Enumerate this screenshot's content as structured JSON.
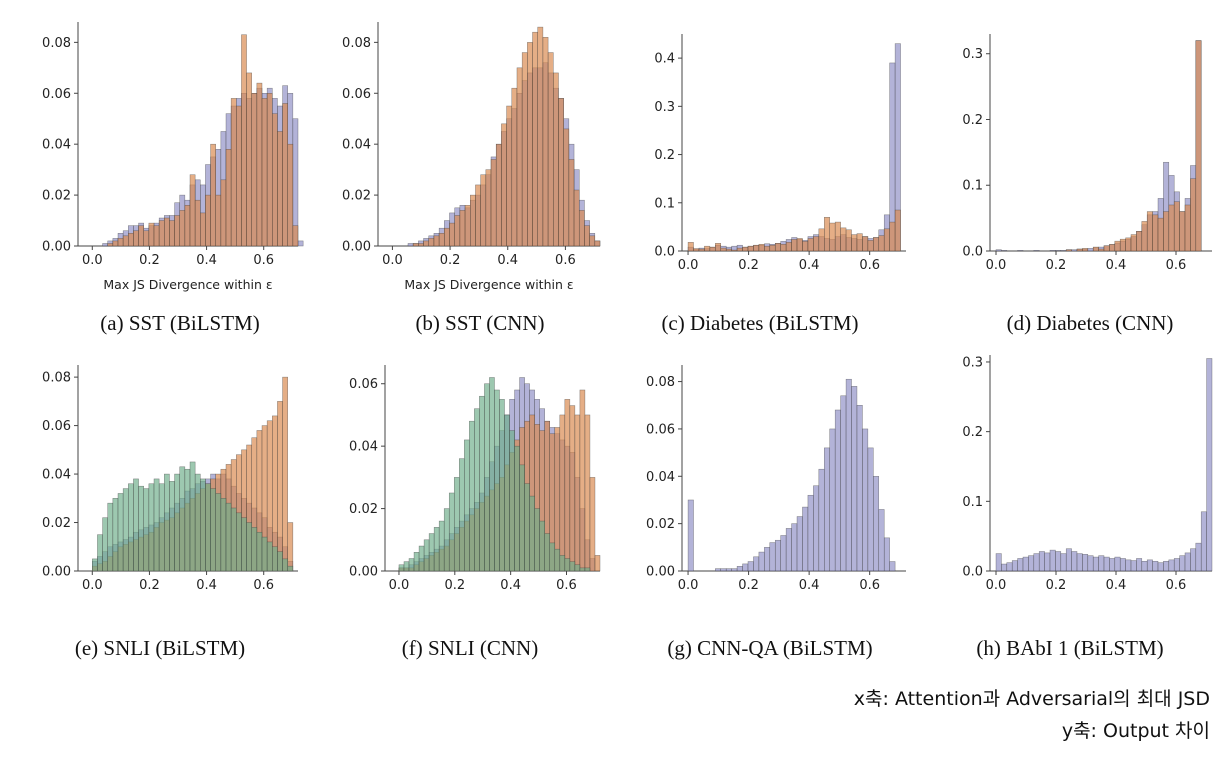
{
  "notes": {
    "x_axis": "x축: Attention과 Adversarial의 최대 JSD",
    "y_axis": "y축: Output 차이"
  },
  "colors": {
    "blue": "#8f8fc6",
    "orange": "#d9874c",
    "green": "#6fae8a"
  },
  "chart_data": [
    {
      "type": "bar",
      "caption": "(a) SST (BiLSTM)",
      "xlabel": "Max JS Divergence within ε",
      "xlim": [
        -0.05,
        0.72
      ],
      "ylim": [
        0,
        0.088
      ],
      "xticks": [
        "0.0",
        "0.2",
        "0.4",
        "0.6"
      ],
      "yticks": [
        "0.00",
        "0.02",
        "0.04",
        "0.06",
        "0.08"
      ],
      "bin_start": 0.0,
      "bin_width": 0.018,
      "series": [
        {
          "color": "blue",
          "values": [
            0.0,
            0.0,
            0.001,
            0.002,
            0.003,
            0.005,
            0.006,
            0.008,
            0.008,
            0.009,
            0.007,
            0.008,
            0.009,
            0.011,
            0.012,
            0.012,
            0.017,
            0.02,
            0.018,
            0.024,
            0.026,
            0.024,
            0.032,
            0.035,
            0.038,
            0.045,
            0.052,
            0.055,
            0.058,
            0.06,
            0.058,
            0.06,
            0.062,
            0.06,
            0.062,
            0.058,
            0.055,
            0.063,
            0.06,
            0.05,
            0.002
          ]
        },
        {
          "color": "orange",
          "values": [
            0.0,
            0.0,
            0.0,
            0.001,
            0.002,
            0.003,
            0.004,
            0.005,
            0.006,
            0.008,
            0.006,
            0.009,
            0.008,
            0.01,
            0.011,
            0.01,
            0.012,
            0.014,
            0.016,
            0.028,
            0.018,
            0.013,
            0.02,
            0.04,
            0.02,
            0.026,
            0.038,
            0.058,
            0.055,
            0.083,
            0.068,
            0.06,
            0.064,
            0.058,
            0.06,
            0.052,
            0.045,
            0.056,
            0.04,
            0.008,
            0.0
          ]
        }
      ]
    },
    {
      "type": "bar",
      "caption": "(b) SST (CNN)",
      "xlabel": "Max JS Divergence within ε",
      "xlim": [
        -0.05,
        0.72
      ],
      "ylim": [
        0,
        0.088
      ],
      "xticks": [
        "0.0",
        "0.2",
        "0.4",
        "0.6"
      ],
      "yticks": [
        "0.00",
        "0.02",
        "0.04",
        "0.06",
        "0.08"
      ],
      "bin_start": 0.0,
      "bin_width": 0.018,
      "series": [
        {
          "color": "blue",
          "values": [
            0.0,
            0.0,
            0.0,
            0.001,
            0.001,
            0.002,
            0.003,
            0.004,
            0.005,
            0.007,
            0.01,
            0.013,
            0.015,
            0.016,
            0.015,
            0.018,
            0.02,
            0.024,
            0.028,
            0.035,
            0.04,
            0.045,
            0.05,
            0.054,
            0.06,
            0.065,
            0.068,
            0.07,
            0.07,
            0.072,
            0.068,
            0.062,
            0.058,
            0.05,
            0.04,
            0.03,
            0.018,
            0.01,
            0.005,
            0.002,
            0.0
          ]
        },
        {
          "color": "orange",
          "values": [
            0.0,
            0.0,
            0.0,
            0.0,
            0.001,
            0.001,
            0.002,
            0.003,
            0.004,
            0.005,
            0.007,
            0.009,
            0.012,
            0.014,
            0.016,
            0.02,
            0.024,
            0.028,
            0.03,
            0.034,
            0.04,
            0.048,
            0.055,
            0.062,
            0.07,
            0.076,
            0.08,
            0.084,
            0.086,
            0.082,
            0.076,
            0.068,
            0.058,
            0.046,
            0.034,
            0.022,
            0.014,
            0.008,
            0.004,
            0.002,
            0.0
          ]
        }
      ]
    },
    {
      "type": "bar",
      "caption": "(c) Diabetes (BiLSTM)",
      "xlabel": "",
      "xlim": [
        -0.02,
        0.72
      ],
      "ylim": [
        0,
        0.45
      ],
      "xticks": [
        "0.0",
        "0.2",
        "0.4",
        "0.6"
      ],
      "yticks": [
        "0.0",
        "0.1",
        "0.2",
        "0.3",
        "0.4"
      ],
      "bin_start": 0.0,
      "bin_width": 0.018,
      "series": [
        {
          "color": "blue",
          "values": [
            0.008,
            0.004,
            0.006,
            0.005,
            0.008,
            0.012,
            0.01,
            0.008,
            0.01,
            0.012,
            0.008,
            0.01,
            0.012,
            0.012,
            0.015,
            0.014,
            0.016,
            0.02,
            0.024,
            0.028,
            0.024,
            0.022,
            0.03,
            0.034,
            0.03,
            0.026,
            0.024,
            0.03,
            0.034,
            0.028,
            0.026,
            0.024,
            0.03,
            0.026,
            0.028,
            0.044,
            0.075,
            0.39,
            0.43
          ]
        },
        {
          "color": "orange",
          "values": [
            0.018,
            0.005,
            0.004,
            0.01,
            0.008,
            0.016,
            0.006,
            0.004,
            0.002,
            0.006,
            0.008,
            0.01,
            0.012,
            0.014,
            0.01,
            0.012,
            0.016,
            0.014,
            0.018,
            0.024,
            0.026,
            0.02,
            0.026,
            0.03,
            0.046,
            0.07,
            0.058,
            0.06,
            0.048,
            0.044,
            0.034,
            0.036,
            0.03,
            0.022,
            0.028,
            0.032,
            0.046,
            0.06,
            0.085
          ]
        }
      ]
    },
    {
      "type": "bar",
      "caption": "(d) Diabetes (CNN)",
      "xlabel": "",
      "xlim": [
        -0.02,
        0.72
      ],
      "ylim": [
        0,
        0.33
      ],
      "xticks": [
        "0.0",
        "0.2",
        "0.4",
        "0.6"
      ],
      "yticks": [
        "0.0",
        "0.1",
        "0.2",
        "0.3"
      ],
      "bin_start": 0.0,
      "bin_width": 0.018,
      "series": [
        {
          "color": "blue",
          "values": [
            0.002,
            0.001,
            0.0,
            0.0,
            0.001,
            0.0,
            0.0,
            0.001,
            0.0,
            0.0,
            0.001,
            0.001,
            0.001,
            0.002,
            0.002,
            0.003,
            0.003,
            0.004,
            0.005,
            0.006,
            0.008,
            0.01,
            0.012,
            0.015,
            0.018,
            0.022,
            0.03,
            0.04,
            0.055,
            0.06,
            0.08,
            0.135,
            0.115,
            0.09,
            0.06,
            0.08,
            0.13,
            0.32,
            0.0
          ]
        },
        {
          "color": "orange",
          "values": [
            0.0,
            0.0,
            0.0,
            0.0,
            0.0,
            0.0,
            0.0,
            0.0,
            0.0,
            0.0,
            0.0,
            0.0,
            0.0,
            0.002,
            0.0,
            0.003,
            0.004,
            0.0,
            0.006,
            0.003,
            0.008,
            0.01,
            0.015,
            0.018,
            0.02,
            0.025,
            0.03,
            0.045,
            0.06,
            0.055,
            0.05,
            0.06,
            0.07,
            0.075,
            0.06,
            0.07,
            0.11,
            0.32,
            0.0
          ]
        }
      ]
    },
    {
      "type": "bar",
      "caption": "(e) SNLI (BiLSTM)",
      "xlabel": "",
      "xlim": [
        -0.05,
        0.72
      ],
      "ylim": [
        0,
        0.085
      ],
      "xticks": [
        "0.0",
        "0.2",
        "0.4",
        "0.6"
      ],
      "yticks": [
        "0.00",
        "0.02",
        "0.04",
        "0.06",
        "0.08"
      ],
      "bin_start": 0.0,
      "bin_width": 0.018,
      "series": [
        {
          "color": "blue",
          "values": [
            0.004,
            0.006,
            0.008,
            0.01,
            0.011,
            0.012,
            0.013,
            0.014,
            0.016,
            0.017,
            0.018,
            0.019,
            0.02,
            0.022,
            0.024,
            0.026,
            0.028,
            0.03,
            0.033,
            0.034,
            0.036,
            0.037,
            0.038,
            0.04,
            0.038,
            0.04,
            0.038,
            0.035,
            0.032,
            0.03,
            0.028,
            0.026,
            0.024,
            0.022,
            0.018,
            0.016,
            0.014,
            0.01,
            0.004,
            0.0
          ]
        },
        {
          "color": "orange",
          "values": [
            0.002,
            0.003,
            0.004,
            0.006,
            0.008,
            0.01,
            0.011,
            0.012,
            0.013,
            0.014,
            0.015,
            0.016,
            0.018,
            0.02,
            0.021,
            0.022,
            0.024,
            0.026,
            0.028,
            0.03,
            0.032,
            0.034,
            0.036,
            0.038,
            0.04,
            0.042,
            0.044,
            0.046,
            0.048,
            0.05,
            0.052,
            0.055,
            0.058,
            0.06,
            0.062,
            0.064,
            0.07,
            0.08,
            0.02,
            0.0
          ]
        },
        {
          "color": "green",
          "values": [
            0.005,
            0.015,
            0.022,
            0.028,
            0.03,
            0.032,
            0.034,
            0.036,
            0.038,
            0.035,
            0.034,
            0.036,
            0.038,
            0.036,
            0.04,
            0.037,
            0.04,
            0.043,
            0.042,
            0.045,
            0.04,
            0.038,
            0.036,
            0.034,
            0.032,
            0.03,
            0.028,
            0.026,
            0.024,
            0.022,
            0.02,
            0.018,
            0.016,
            0.014,
            0.012,
            0.01,
            0.008,
            0.005,
            0.002,
            0.0
          ]
        }
      ]
    },
    {
      "type": "bar",
      "caption": "(f) SNLI (CNN)",
      "xlabel": "",
      "xlim": [
        -0.05,
        0.72
      ],
      "ylim": [
        0,
        0.066
      ],
      "xticks": [
        "0.0",
        "0.2",
        "0.4",
        "0.6"
      ],
      "yticks": [
        "0.00",
        "0.02",
        "0.04",
        "0.06"
      ],
      "bin_start": 0.0,
      "bin_width": 0.018,
      "series": [
        {
          "color": "blue",
          "values": [
            0.001,
            0.001,
            0.002,
            0.003,
            0.004,
            0.005,
            0.006,
            0.007,
            0.008,
            0.01,
            0.012,
            0.014,
            0.016,
            0.018,
            0.02,
            0.022,
            0.025,
            0.03,
            0.035,
            0.04,
            0.045,
            0.05,
            0.055,
            0.058,
            0.062,
            0.06,
            0.058,
            0.055,
            0.052,
            0.048,
            0.046,
            0.044,
            0.042,
            0.04,
            0.038,
            0.03,
            0.02,
            0.01,
            0.004,
            0.0
          ]
        },
        {
          "color": "orange",
          "values": [
            0.001,
            0.001,
            0.001,
            0.002,
            0.003,
            0.004,
            0.005,
            0.006,
            0.007,
            0.008,
            0.01,
            0.012,
            0.014,
            0.016,
            0.018,
            0.02,
            0.022,
            0.024,
            0.026,
            0.028,
            0.03,
            0.034,
            0.038,
            0.042,
            0.046,
            0.048,
            0.05,
            0.047,
            0.045,
            0.048,
            0.044,
            0.046,
            0.05,
            0.055,
            0.053,
            0.05,
            0.058,
            0.05,
            0.03,
            0.005
          ]
        },
        {
          "color": "green",
          "values": [
            0.002,
            0.003,
            0.004,
            0.006,
            0.008,
            0.01,
            0.012,
            0.014,
            0.016,
            0.02,
            0.025,
            0.03,
            0.036,
            0.042,
            0.048,
            0.052,
            0.056,
            0.06,
            0.062,
            0.058,
            0.055,
            0.05,
            0.045,
            0.04,
            0.034,
            0.028,
            0.024,
            0.02,
            0.016,
            0.012,
            0.009,
            0.007,
            0.005,
            0.004,
            0.003,
            0.002,
            0.001,
            0.001,
            0.0,
            0.0
          ]
        }
      ]
    },
    {
      "type": "bar",
      "caption": "(g) CNN-QA (BiLSTM)",
      "xlabel": "",
      "xlim": [
        -0.02,
        0.72
      ],
      "ylim": [
        0,
        0.087
      ],
      "xticks": [
        "0.0",
        "0.2",
        "0.4",
        "0.6"
      ],
      "yticks": [
        "0.00",
        "0.02",
        "0.04",
        "0.06",
        "0.08"
      ],
      "bin_start": 0.0,
      "bin_width": 0.018,
      "series": [
        {
          "color": "blue",
          "values": [
            0.03,
            0.0,
            0.0,
            0.0,
            0.0,
            0.001,
            0.001,
            0.001,
            0.001,
            0.002,
            0.003,
            0.004,
            0.006,
            0.008,
            0.01,
            0.012,
            0.013,
            0.015,
            0.018,
            0.02,
            0.023,
            0.027,
            0.032,
            0.036,
            0.043,
            0.052,
            0.06,
            0.068,
            0.074,
            0.081,
            0.078,
            0.07,
            0.06,
            0.052,
            0.04,
            0.026,
            0.014,
            0.004,
            0.0,
            0.0
          ]
        }
      ]
    },
    {
      "type": "bar",
      "caption": "(h) BAbI 1 (BiLSTM)",
      "xlabel": "",
      "xlim": [
        -0.02,
        0.72
      ],
      "ylim": [
        0,
        0.31
      ],
      "xticks": [
        "0.0",
        "0.2",
        "0.4",
        "0.6"
      ],
      "yticks": [
        "0.0",
        "0.1",
        "0.2",
        "0.3"
      ],
      "bin_start": 0.0,
      "bin_width": 0.018,
      "series": [
        {
          "color": "blue",
          "values": [
            0.025,
            0.01,
            0.012,
            0.015,
            0.018,
            0.02,
            0.022,
            0.025,
            0.028,
            0.026,
            0.03,
            0.028,
            0.025,
            0.032,
            0.028,
            0.025,
            0.024,
            0.022,
            0.02,
            0.022,
            0.02,
            0.018,
            0.02,
            0.018,
            0.016,
            0.015,
            0.018,
            0.014,
            0.016,
            0.014,
            0.012,
            0.014,
            0.016,
            0.018,
            0.022,
            0.026,
            0.032,
            0.04,
            0.085,
            0.305
          ]
        }
      ]
    }
  ]
}
